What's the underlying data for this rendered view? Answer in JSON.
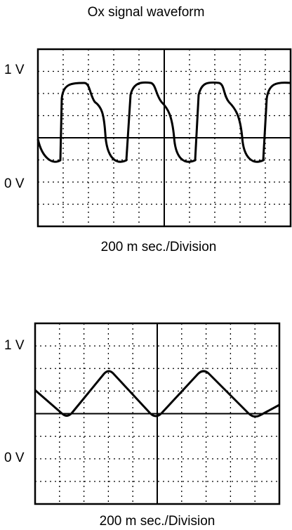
{
  "title": "Ox signal waveform",
  "scopes": [
    {
      "top_label": "1 V",
      "bottom_label": "0 V",
      "caption": "200 m sec./Division"
    },
    {
      "top_label": "1 V",
      "bottom_label": "0 V",
      "caption": "200 m sec./Division"
    }
  ]
}
